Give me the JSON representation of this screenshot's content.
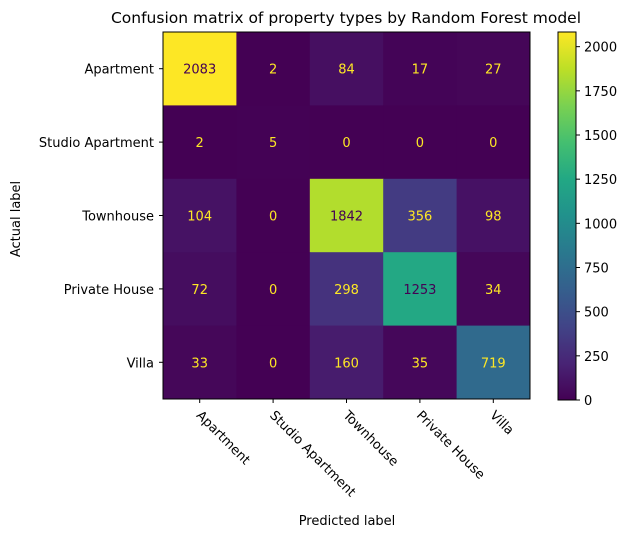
{
  "chart_data": {
    "type": "heatmap",
    "title": "Confusion matrix of property types by Random Forest model",
    "xlabel": "Predicted label",
    "ylabel": "Actual label",
    "row_labels": [
      "Apartment",
      "Studio Apartment",
      "Townhouse",
      "Private House",
      "Villa"
    ],
    "col_labels": [
      "Apartment",
      "Studio Apartment",
      "Townhouse",
      "Private House",
      "Villa"
    ],
    "matrix": [
      [
        2083,
        2,
        84,
        17,
        27
      ],
      [
        2,
        5,
        0,
        0,
        0
      ],
      [
        104,
        0,
        1842,
        356,
        98
      ],
      [
        72,
        0,
        298,
        1253,
        34
      ],
      [
        33,
        0,
        160,
        35,
        719
      ]
    ],
    "colorscale": "viridis",
    "color_range": [
      0,
      2083
    ],
    "colorbar_ticks": [
      "0",
      "250",
      "500",
      "750",
      "1000",
      "1250",
      "1500",
      "1750",
      "2000"
    ],
    "text_color_light": "#fde725",
    "text_color_dark": "#440154",
    "x_tick_rotation": -45
  }
}
